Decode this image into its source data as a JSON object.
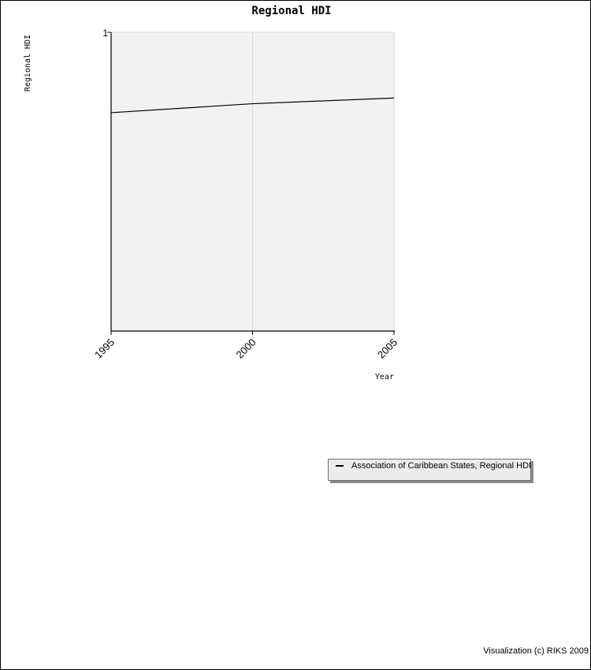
{
  "colors": {
    "plot_background": "#f2f2f2",
    "gridline": "#d9d9d9",
    "axis": "#000000",
    "series_line": "#000000",
    "legend_background": "#ececec"
  },
  "chart_data": {
    "type": "line",
    "title": "Regional HDI",
    "xlabel": "Year",
    "ylabel": "Regional HDI",
    "x": [
      1995,
      2000,
      2005
    ],
    "x_ticks": [
      "1995",
      "2000",
      "2005"
    ],
    "y_ticks": [
      "1"
    ],
    "ylim": [
      0,
      1
    ],
    "xlim": [
      1995,
      2005
    ],
    "grid": "vertical",
    "legend_placement": "below-right",
    "series": [
      {
        "name": "Association of Caribbean States, Regional HDI",
        "values": [
          0.731,
          0.761,
          0.78
        ]
      }
    ]
  },
  "footer": {
    "credit": "Visualization (c) RIKS 2009"
  }
}
